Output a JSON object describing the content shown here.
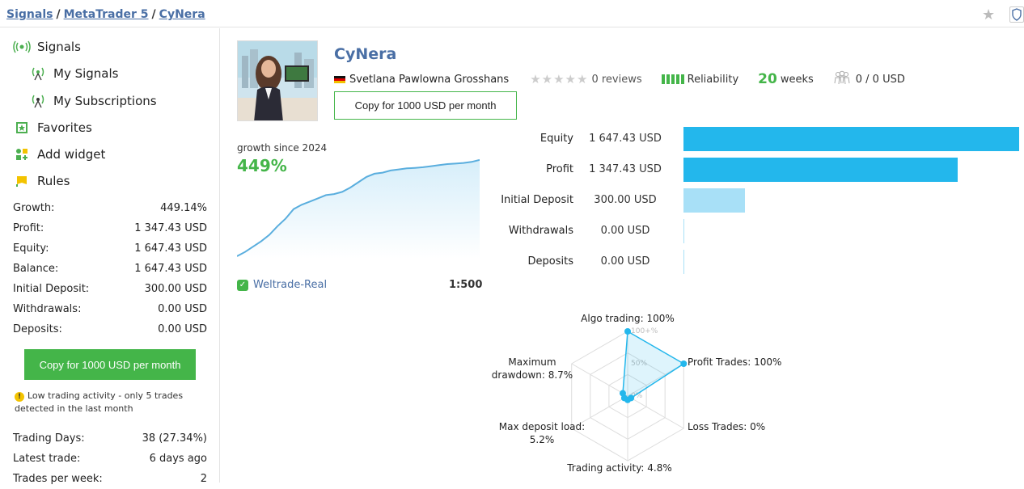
{
  "breadcrumb": {
    "items": [
      "Signals",
      "MetaTrader 5",
      "CyNera"
    ],
    "separator": "/"
  },
  "header_icons": [
    "star-icon",
    "shield-icon"
  ],
  "sidebar": {
    "nav": [
      {
        "label": "Signals",
        "icon": "signal-icon"
      },
      {
        "label": "My Signals",
        "icon": "my-signals-icon"
      },
      {
        "label": "My Subscriptions",
        "icon": "subscriptions-icon"
      },
      {
        "label": "Favorites",
        "icon": "favorites-icon"
      },
      {
        "label": "Add widget",
        "icon": "widget-icon"
      },
      {
        "label": "Rules",
        "icon": "rules-icon"
      }
    ],
    "stats": [
      {
        "label": "Growth:",
        "value": "449.14%"
      },
      {
        "label": "Profit:",
        "value": "1 347.43 USD"
      },
      {
        "label": "Equity:",
        "value": "1 647.43 USD"
      },
      {
        "label": "Balance:",
        "value": "1 647.43 USD"
      },
      {
        "label": "Initial Deposit:",
        "value": "300.00 USD"
      },
      {
        "label": "Withdrawals:",
        "value": "0.00 USD"
      },
      {
        "label": "Deposits:",
        "value": "0.00 USD"
      }
    ],
    "copy_button": "Copy for 1000 USD per month",
    "warning": "Low trading activity - only 5 trades detected in the last month",
    "stats2": [
      {
        "label": "Trading Days:",
        "value": "38 (27.34%)"
      },
      {
        "label": "Latest trade:",
        "value": "6 days ago"
      },
      {
        "label": "Trades per week:",
        "value": "2"
      }
    ]
  },
  "signal": {
    "name": "CyNera",
    "author": "Svetlana Pawlowna Grosshans",
    "reviews": "0 reviews",
    "rating_stars": 0,
    "reliability_label": "Reliability",
    "weeks_value": "20",
    "weeks_unit": "weeks",
    "subscribers": "0 / 0 USD",
    "copy_button": "Copy for 1000 USD per month"
  },
  "growth": {
    "label": "growth since 2024",
    "value": "449%",
    "broker": "Weltrade-Real",
    "leverage": "1:500"
  },
  "colors": {
    "accent_green": "#44b549",
    "link_blue": "#4a6fa5",
    "bar_blue": "#23b7ec",
    "bar_light": "#a8e0f7"
  },
  "chart_data": [
    {
      "type": "area",
      "x": [
        0,
        1,
        2,
        3,
        4,
        5,
        6,
        7,
        8,
        9,
        10,
        11,
        12,
        13,
        14,
        15,
        16,
        17,
        18,
        19,
        20,
        21,
        22,
        23,
        24,
        25,
        26,
        27,
        28,
        29,
        30
      ],
      "values": [
        0,
        20,
        45,
        70,
        100,
        140,
        175,
        220,
        240,
        255,
        270,
        285,
        290,
        300,
        320,
        345,
        370,
        385,
        390,
        400,
        405,
        410,
        412,
        415,
        420,
        425,
        430,
        432,
        435,
        440,
        449
      ],
      "ylim": [
        0,
        460
      ]
    },
    {
      "type": "bar",
      "categories": [
        "Equity",
        "Profit",
        "Initial Deposit",
        "Withdrawals",
        "Deposits"
      ],
      "values": [
        1647.43,
        1347.43,
        300.0,
        0.0,
        0.0
      ],
      "value_labels": [
        "1 647.43 USD",
        "1 347.43 USD",
        "300.00 USD",
        "0.00 USD",
        "0.00 USD"
      ],
      "max": 1647.43
    },
    {
      "type": "radar",
      "categories": [
        "Algo trading: 100%",
        "Profit Trades: 100%",
        "Loss Trades: 0%",
        "Trading activity: 4.8%",
        "Max deposit load: 5.2%",
        "Maximum drawdown: 8.7%"
      ],
      "values": [
        100,
        100,
        0,
        4.8,
        5.2,
        8.7
      ],
      "ticks": [
        "100+%",
        "50%",
        "0%"
      ]
    }
  ]
}
